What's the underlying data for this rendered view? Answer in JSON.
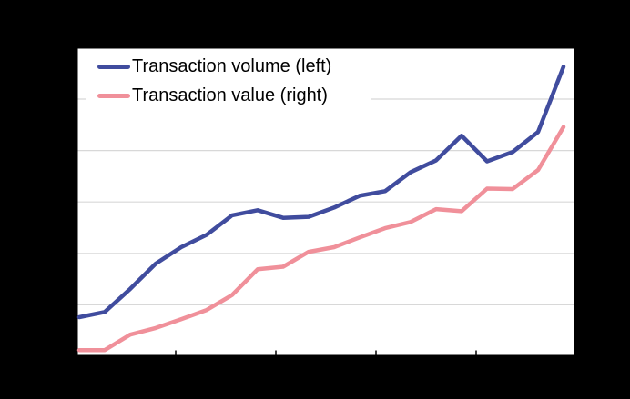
{
  "window": {
    "background_color": "#000000",
    "plot_background_color": "#ffffff",
    "axis_color": "#000000",
    "gridline_color": "#d8d8d8"
  },
  "legend": {
    "items": [
      {
        "label": "Transaction volume (left)",
        "series_key": "volume",
        "color": "#404c9e"
      },
      {
        "label": "Transaction value (right)",
        "series_key": "value",
        "color": "#f0909a"
      }
    ]
  },
  "chart_data": {
    "type": "line",
    "title": "",
    "xlabel": "",
    "ylabel_left": "",
    "ylabel_right": "",
    "x_index": [
      1,
      2,
      3,
      4,
      5,
      6,
      7,
      8,
      9,
      10,
      11,
      12,
      13,
      14,
      15,
      16,
      17,
      18,
      19,
      20
    ],
    "x_tick_labels": [
      "",
      "",
      "",
      ""
    ],
    "y_tick_labels_visible": false,
    "note": "axis tick labels are not visible against the black background; values are in gridline units 0-6",
    "ylim": [
      0,
      6
    ],
    "gridlines": "horizontal",
    "legend_position": "top-left inside plot",
    "series": [
      {
        "name": "Transaction volume (left)",
        "axis": "left",
        "color": "#404c9e",
        "values": [
          0.76,
          0.86,
          1.31,
          1.8,
          2.12,
          2.36,
          2.74,
          2.84,
          2.69,
          2.71,
          2.89,
          3.12,
          3.21,
          3.58,
          3.81,
          4.29,
          3.79,
          3.97,
          4.36,
          5.63
        ]
      },
      {
        "name": "Transaction value (right)",
        "axis": "right",
        "color": "#f0909a",
        "values": [
          0.12,
          0.12,
          0.42,
          0.55,
          0.72,
          0.9,
          1.19,
          1.69,
          1.74,
          2.03,
          2.12,
          2.31,
          2.49,
          2.61,
          2.86,
          2.82,
          3.26,
          3.25,
          3.62,
          4.46
        ]
      }
    ]
  }
}
